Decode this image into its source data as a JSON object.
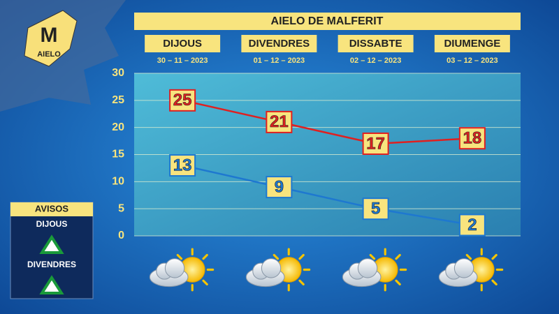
{
  "chart_data": {
    "type": "line",
    "title": "AIELO DE MALFERIT",
    "categories": [
      "DIJOUS",
      "DIVENDRES",
      "DISSABTE",
      "DIUMENGE"
    ],
    "dates": [
      "30 – 11 – 2023",
      "01 – 12 – 2023",
      "02 – 12 – 2023",
      "03 – 12 – 2023"
    ],
    "series": [
      {
        "color": "#e02020",
        "values": [
          25,
          21,
          17,
          18
        ]
      },
      {
        "color": "#1e78d0",
        "values": [
          13,
          9,
          5,
          2
        ]
      }
    ],
    "ylim": [
      0,
      30
    ],
    "yticks": [
      0,
      5,
      10,
      15,
      20,
      25,
      30
    ],
    "grid": true
  },
  "logo": "AIELO",
  "warnings": {
    "title": "AVISOS",
    "days": [
      "DIJOUS",
      "DIVENDRES"
    ]
  }
}
